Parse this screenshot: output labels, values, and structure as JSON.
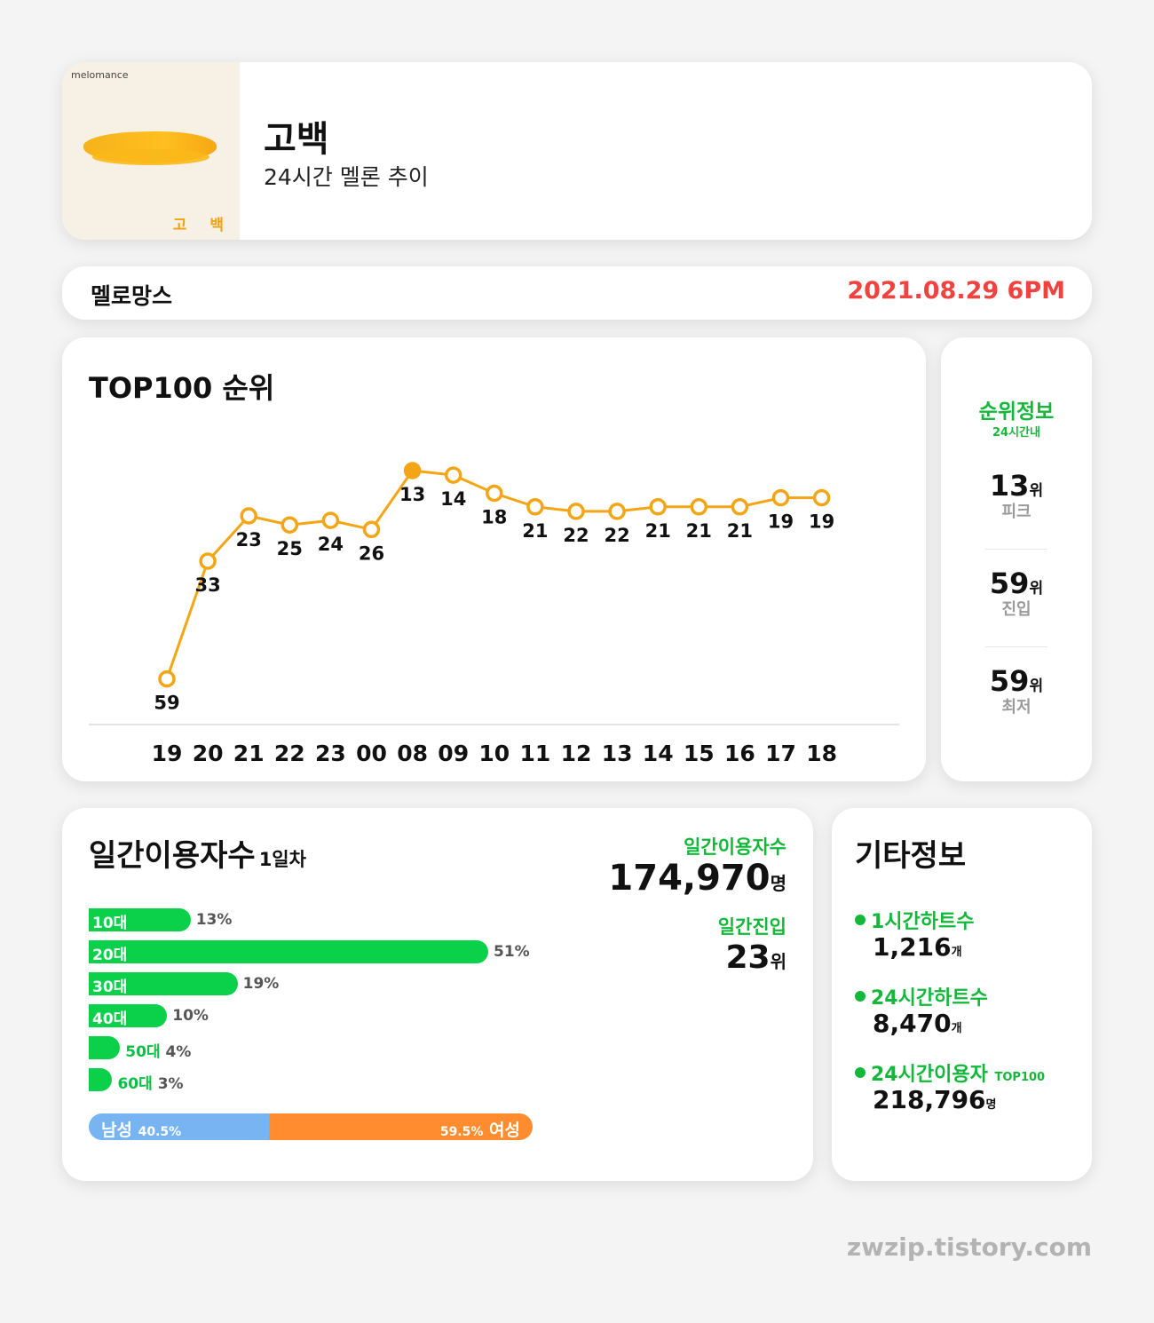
{
  "header": {
    "album_brand": "melomance",
    "album_title": "고 백",
    "song_title": "고백",
    "subtitle": "24시간 멜론 추이"
  },
  "artist_bar": {
    "artist": "멜로망스",
    "datetime": "2021.08.29 6PM"
  },
  "colors": {
    "line": "#f4a515",
    "accent_green": "#13b83a",
    "date_red": "#f0423e",
    "bar_green": "#0bd14a",
    "male": "#79b4f2",
    "female": "#ff8c2e"
  },
  "chart_data": {
    "type": "line",
    "title": "TOP100 순위",
    "x": [
      "19",
      "20",
      "21",
      "22",
      "23",
      "00",
      "08",
      "09",
      "10",
      "11",
      "12",
      "13",
      "14",
      "15",
      "16",
      "17",
      "18"
    ],
    "values": [
      59,
      33,
      23,
      25,
      24,
      26,
      13,
      14,
      18,
      21,
      22,
      22,
      21,
      21,
      21,
      19,
      19
    ],
    "y_inverted": true,
    "peak_highlight": 13
  },
  "rank_info": {
    "title": "순위정보",
    "subtitle": "24시간내",
    "unit": "위",
    "items": [
      {
        "value": "13",
        "label": "피크"
      },
      {
        "value": "59",
        "label": "진입"
      },
      {
        "value": "59",
        "label": "최저"
      }
    ]
  },
  "daily_users": {
    "title": "일간이용자수",
    "title_sub": "1일차",
    "users_label": "일간이용자수",
    "users_value": "174,970",
    "users_unit": "명",
    "entry_label": "일간진입",
    "entry_value": "23",
    "entry_unit": "위",
    "ages": [
      {
        "label": "10대",
        "pct": 13,
        "pct_text": "13%"
      },
      {
        "label": "20대",
        "pct": 51,
        "pct_text": "51%"
      },
      {
        "label": "30대",
        "pct": 19,
        "pct_text": "19%"
      },
      {
        "label": "40대",
        "pct": 10,
        "pct_text": "10%"
      },
      {
        "label": "50대",
        "pct": 4,
        "pct_text": "4%"
      },
      {
        "label": "60대",
        "pct": 3,
        "pct_text": "3%"
      }
    ],
    "gender": {
      "male_label": "남성",
      "male_pct": 40.5,
      "male_text": "40.5%",
      "female_label": "여성",
      "female_pct": 59.5,
      "female_text": "59.5%"
    }
  },
  "etc": {
    "title": "기타정보",
    "items": [
      {
        "label": "1시간하트수",
        "label_sub": "",
        "value": "1,216",
        "unit": "개"
      },
      {
        "label": "24시간하트수",
        "label_sub": "",
        "value": "8,470",
        "unit": "개"
      },
      {
        "label": "24시간이용자",
        "label_sub": "TOP100",
        "value": "218,796",
        "unit": "명"
      }
    ]
  },
  "credit": "zwzip.tistory.com"
}
